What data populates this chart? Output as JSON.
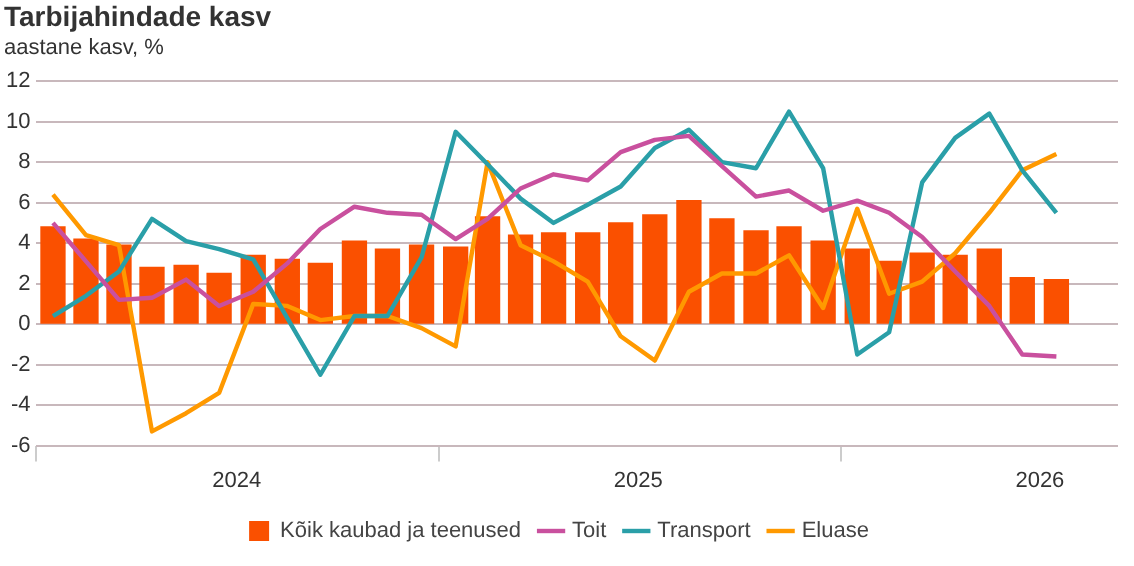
{
  "chart_data": {
    "type": "bar",
    "title": "Tarbijahindade kasv",
    "subtitle": "aastane kasv, %",
    "x": [
      "2024-01-16",
      "2024-02-15",
      "2024-03-16",
      "2024-04-15",
      "2024-05-16",
      "2024-06-15",
      "2024-07-16",
      "2024-08-16",
      "2024-09-15",
      "2024-10-16",
      "2024-11-15",
      "2024-12-16",
      "2025-01-16",
      "2025-02-14",
      "2025-03-16",
      "2025-04-15",
      "2025-05-16",
      "2025-06-15",
      "2025-07-16",
      "2025-08-16",
      "2025-09-15",
      "2025-10-16",
      "2025-11-15",
      "2025-12-16",
      "2026-01-16",
      "2026-02-14",
      "2026-03-16",
      "2026-04-15",
      "2026-05-16",
      "2026-06-15",
      "2026-07-16"
    ],
    "series": [
      {
        "name": "Kõik kaubad ja teenused",
        "color": "#fa5000",
        "values": [
          4.8,
          4.2,
          3.9,
          2.8,
          2.9,
          2.5,
          3.4,
          3.2,
          3.0,
          4.1,
          3.7,
          3.9,
          3.8,
          5.3,
          4.4,
          4.5,
          4.5,
          5.0,
          5.4,
          6.1,
          5.2,
          4.6,
          4.8,
          4.1,
          3.7,
          3.1,
          3.5,
          3.4,
          3.7,
          2.3,
          2.2
        ]
      },
      {
        "name": "Toit",
        "type": "line",
        "color": "#c9509e",
        "values": [
          5.0,
          3.1,
          1.2,
          1.3,
          2.2,
          0.9,
          1.6,
          3.0,
          4.7,
          5.8,
          5.5,
          5.4,
          4.2,
          5.2,
          6.7,
          7.4,
          7.1,
          8.5,
          9.1,
          9.3,
          7.8,
          6.3,
          6.6,
          5.6,
          6.1,
          5.5,
          4.3,
          2.6,
          0.9,
          -1.5,
          -1.6
        ]
      },
      {
        "name": "Transport",
        "type": "line",
        "color": "#2a9fa8",
        "values": [
          0.4,
          1.4,
          2.6,
          5.2,
          4.1,
          3.7,
          3.2,
          0.3,
          -2.5,
          0.4,
          0.4,
          3.3,
          9.5,
          7.9,
          6.2,
          5.0,
          5.9,
          6.8,
          8.7,
          9.6,
          8.0,
          7.7,
          10.5,
          7.7,
          -1.5,
          -0.4,
          7.0,
          9.2,
          10.4,
          7.6,
          5.5
        ]
      },
      {
        "name": "Eluase",
        "type": "line",
        "color": "#ff9900",
        "values": [
          6.4,
          4.4,
          3.9,
          -5.3,
          -4.4,
          -3.4,
          1.0,
          0.9,
          0.2,
          0.4,
          0.4,
          -0.2,
          -1.1,
          8.0,
          3.9,
          3.1,
          2.1,
          -0.6,
          -1.8,
          1.6,
          2.5,
          2.5,
          3.4,
          0.8,
          5.7,
          1.5,
          2.1,
          3.5,
          5.5,
          7.6,
          8.4
        ]
      }
    ],
    "xlim": [
      "2024-01-01",
      "2026-09-10"
    ],
    "xticks": [
      {
        "value": "2024-01-01",
        "label": null
      },
      {
        "value": "2024-07-01",
        "label": "2024"
      },
      {
        "value": "2025-01-01",
        "label": null
      },
      {
        "value": "2025-07-01",
        "label": "2025"
      },
      {
        "value": "2026-01-01",
        "label": null
      },
      {
        "value": "2026-07-01",
        "label": "2026"
      }
    ],
    "ylim": [
      -6,
      12
    ],
    "yticks": [
      -6,
      -4,
      -2,
      0,
      2,
      4,
      6,
      8,
      10,
      12
    ],
    "grid": "y",
    "legend": "bottom"
  }
}
